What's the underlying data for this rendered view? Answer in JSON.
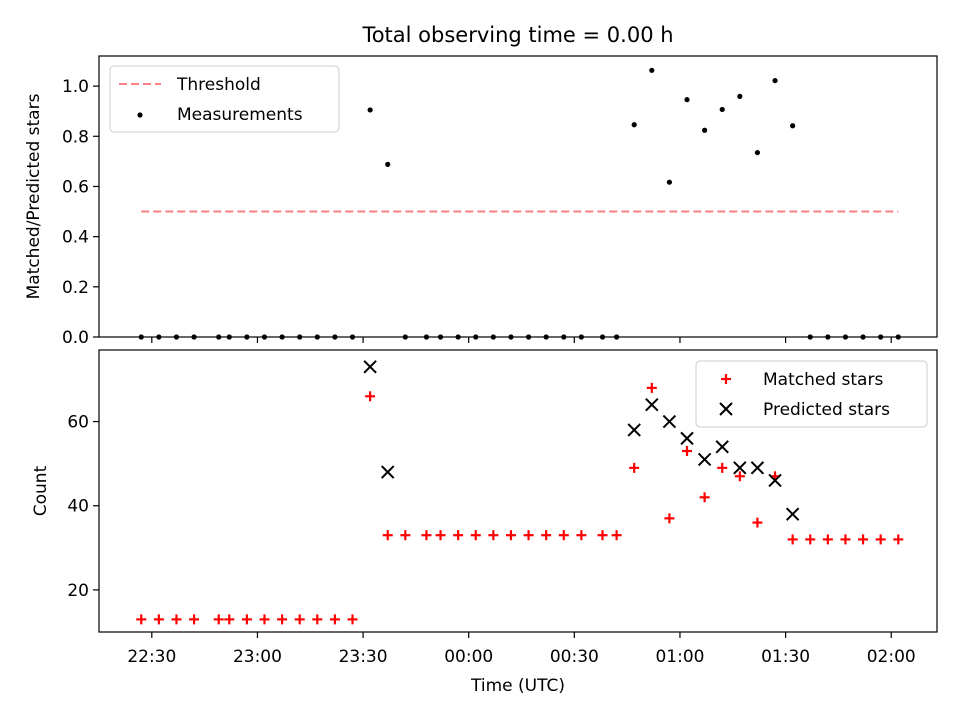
{
  "figure": {
    "title": "Total observing time = 0.00 h",
    "xlabel": "Time (UTC)"
  },
  "chart_data": [
    {
      "type": "scatter",
      "panel": "top",
      "ylabel": "Matched/Predicted stars",
      "ylim": [
        0,
        1.12
      ],
      "yticks": [
        0.0,
        0.2,
        0.4,
        0.6,
        0.8,
        1.0
      ],
      "ytick_labels": [
        "0.0",
        "0.2",
        "0.4",
        "0.6",
        "0.8",
        "1.0"
      ],
      "xlim": [
        "22:15",
        "02:13"
      ],
      "grid": false,
      "legend": "top-left",
      "threshold": {
        "name": "Threshold",
        "value": 0.5,
        "x_start": "22:27",
        "x_end": "02:02",
        "color": "#ff8080",
        "style": "dashed"
      },
      "series": [
        {
          "name": "Measurements",
          "color": "#000000",
          "marker": "dot",
          "points": [
            [
              "22:27",
              0
            ],
            [
              "22:32",
              0
            ],
            [
              "22:37",
              0
            ],
            [
              "22:42",
              0
            ],
            [
              "22:49",
              0
            ],
            [
              "22:52",
              0
            ],
            [
              "22:57",
              0
            ],
            [
              "23:02",
              0
            ],
            [
              "23:07",
              0
            ],
            [
              "23:12",
              0
            ],
            [
              "23:17",
              0
            ],
            [
              "23:22",
              0
            ],
            [
              "23:27",
              0
            ],
            [
              "23:32",
              0.905
            ],
            [
              "23:37",
              0.688
            ],
            [
              "23:42",
              0
            ],
            [
              "23:48",
              0
            ],
            [
              "23:52",
              0
            ],
            [
              "23:57",
              0
            ],
            [
              "00:02",
              0
            ],
            [
              "00:07",
              0
            ],
            [
              "00:12",
              0
            ],
            [
              "00:17",
              0
            ],
            [
              "00:22",
              0
            ],
            [
              "00:27",
              0
            ],
            [
              "00:32",
              0
            ],
            [
              "00:38",
              0
            ],
            [
              "00:42",
              0
            ],
            [
              "00:47",
              0.846
            ],
            [
              "00:52",
              1.063
            ],
            [
              "00:57",
              0.617
            ],
            [
              "01:02",
              0.946
            ],
            [
              "01:07",
              0.824
            ],
            [
              "01:12",
              0.907
            ],
            [
              "01:17",
              0.959
            ],
            [
              "01:22",
              0.735
            ],
            [
              "01:27",
              1.022
            ],
            [
              "01:32",
              0.842
            ],
            [
              "01:37",
              0
            ],
            [
              "01:42",
              0
            ],
            [
              "01:47",
              0
            ],
            [
              "01:52",
              0
            ],
            [
              "01:57",
              0
            ],
            [
              "02:02",
              0
            ]
          ]
        }
      ]
    },
    {
      "type": "scatter",
      "panel": "bottom",
      "ylabel": "Count",
      "xlabel": "Time (UTC)",
      "ylim": [
        10,
        77
      ],
      "yticks": [
        20,
        40,
        60
      ],
      "ytick_labels": [
        "20",
        "40",
        "60"
      ],
      "xlim": [
        "22:15",
        "02:13"
      ],
      "xticks": [
        "22:30",
        "23:00",
        "23:30",
        "00:00",
        "00:30",
        "01:00",
        "01:30",
        "02:00"
      ],
      "xtick_labels": [
        "22:30",
        "23:00",
        "23:30",
        "00:00",
        "00:30",
        "01:00",
        "01:30",
        "02:00"
      ],
      "grid": false,
      "legend": "top-right",
      "series": [
        {
          "name": "Matched stars",
          "color": "#ff0000",
          "marker": "plus",
          "points": [
            [
              "22:27",
              13
            ],
            [
              "22:32",
              13
            ],
            [
              "22:37",
              13
            ],
            [
              "22:42",
              13
            ],
            [
              "22:49",
              13
            ],
            [
              "22:52",
              13
            ],
            [
              "22:57",
              13
            ],
            [
              "23:02",
              13
            ],
            [
              "23:07",
              13
            ],
            [
              "23:12",
              13
            ],
            [
              "23:17",
              13
            ],
            [
              "23:22",
              13
            ],
            [
              "23:27",
              13
            ],
            [
              "23:32",
              66
            ],
            [
              "23:37",
              33
            ],
            [
              "23:42",
              33
            ],
            [
              "23:48",
              33
            ],
            [
              "23:52",
              33
            ],
            [
              "23:57",
              33
            ],
            [
              "00:02",
              33
            ],
            [
              "00:07",
              33
            ],
            [
              "00:12",
              33
            ],
            [
              "00:17",
              33
            ],
            [
              "00:22",
              33
            ],
            [
              "00:27",
              33
            ],
            [
              "00:32",
              33
            ],
            [
              "00:38",
              33
            ],
            [
              "00:42",
              33
            ],
            [
              "00:47",
              49
            ],
            [
              "00:52",
              68
            ],
            [
              "00:57",
              37
            ],
            [
              "01:02",
              53
            ],
            [
              "01:07",
              42
            ],
            [
              "01:12",
              49
            ],
            [
              "01:17",
              47
            ],
            [
              "01:22",
              36
            ],
            [
              "01:27",
              47
            ],
            [
              "01:32",
              32
            ],
            [
              "01:37",
              32
            ],
            [
              "01:42",
              32
            ],
            [
              "01:47",
              32
            ],
            [
              "01:52",
              32
            ],
            [
              "01:57",
              32
            ],
            [
              "02:02",
              32
            ]
          ]
        },
        {
          "name": "Predicted stars",
          "color": "#000000",
          "marker": "x",
          "points": [
            [
              "23:32",
              73
            ],
            [
              "23:37",
              48
            ],
            [
              "00:47",
              58
            ],
            [
              "00:52",
              64
            ],
            [
              "00:57",
              60
            ],
            [
              "01:02",
              56
            ],
            [
              "01:07",
              51
            ],
            [
              "01:12",
              54
            ],
            [
              "01:17",
              49
            ],
            [
              "01:22",
              49
            ],
            [
              "01:27",
              46
            ],
            [
              "01:32",
              38
            ]
          ]
        }
      ]
    }
  ]
}
